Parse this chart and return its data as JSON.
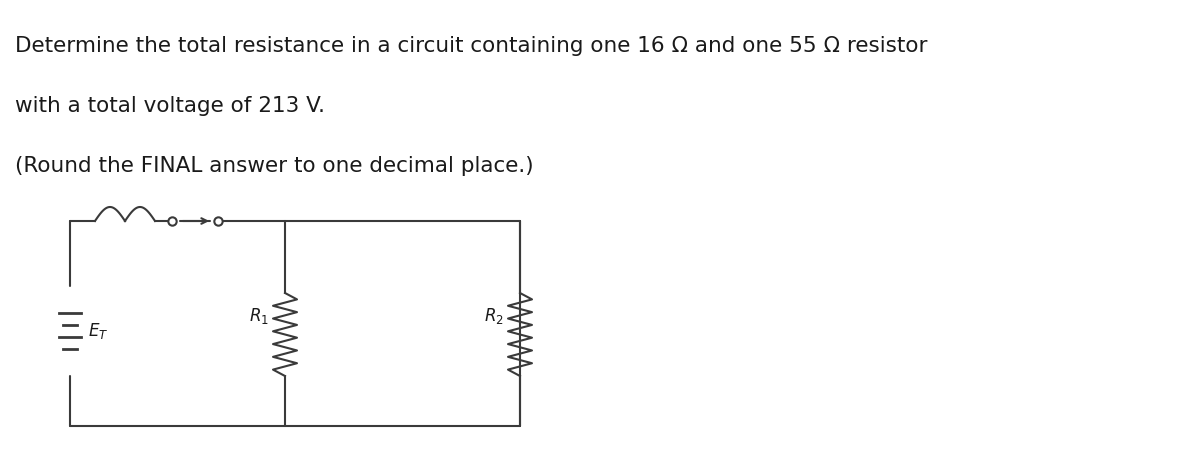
{
  "text_line1": "Determine the total resistance in a circuit containing one 16 Ω and one 55 Ω resistor",
  "text_line2": "with a total voltage of 213 V.",
  "text_line3": "(Round the FINAL answer to one decimal place.)",
  "bg_color": "#ffffff",
  "text_color": "#1a1a1a",
  "circuit_color": "#3a3a3a",
  "font_size": 15.5,
  "fig_width": 12.0,
  "fig_height": 4.51
}
